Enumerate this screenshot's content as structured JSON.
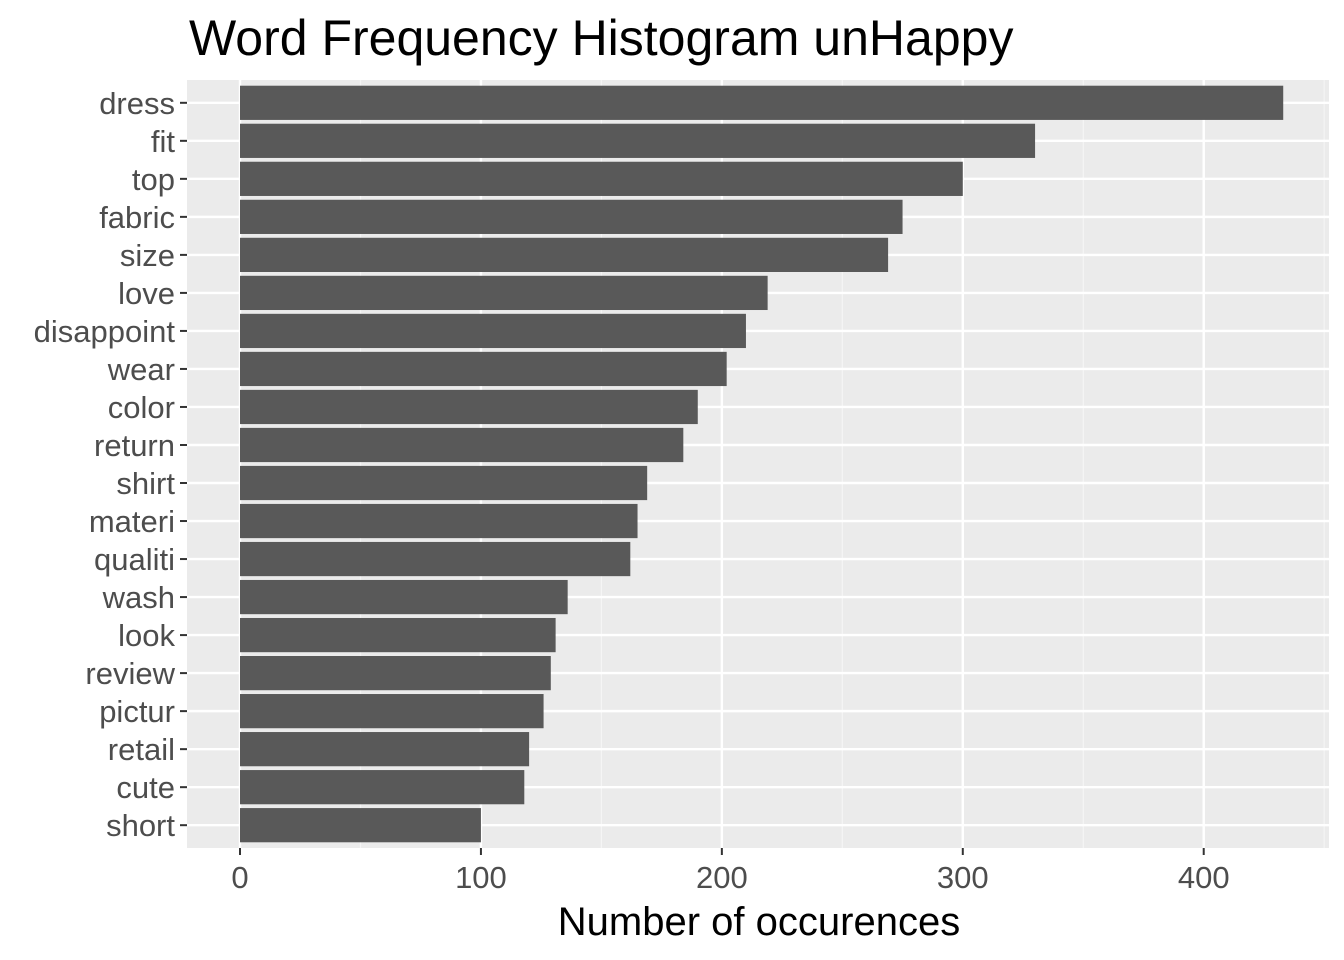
{
  "chart_data": {
    "type": "bar",
    "orientation": "horizontal",
    "title": "Word Frequency Histogram unHappy",
    "xlabel": "Number of occurences",
    "ylabel": "",
    "categories": [
      "dress",
      "fit",
      "top",
      "fabric",
      "size",
      "love",
      "disappoint",
      "wear",
      "color",
      "return",
      "shirt",
      "materi",
      "qualiti",
      "wash",
      "look",
      "review",
      "pictur",
      "retail",
      "cute",
      "short"
    ],
    "values": [
      433,
      330,
      300,
      275,
      269,
      219,
      210,
      202,
      190,
      184,
      169,
      165,
      162,
      136,
      131,
      129,
      126,
      120,
      118,
      100
    ],
    "xlim": [
      -22,
      452
    ],
    "xticks": [
      0,
      100,
      200,
      300,
      400
    ],
    "xtick_labels": [
      "0",
      "100",
      "200",
      "300",
      "400"
    ],
    "grid": true,
    "colors": {
      "bar": "#595959",
      "panel": "#ebebeb",
      "grid_major": "#ffffff",
      "grid_minor": "#f5f5f5",
      "tick_text": "#4d4d4d",
      "tick_mark": "#333333"
    }
  }
}
